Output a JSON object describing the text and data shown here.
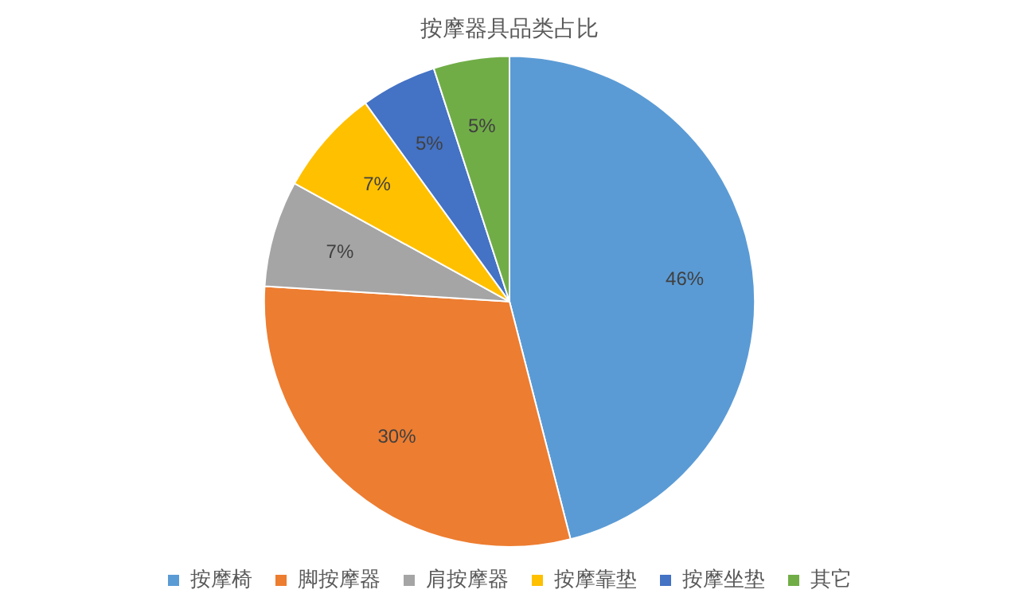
{
  "chart_data": {
    "type": "pie",
    "title": "按摩器具品类占比",
    "categories": [
      "按摩椅",
      "脚按摩器",
      "肩按摩器",
      "按摩靠垫",
      "按摩坐垫",
      "其它"
    ],
    "values": [
      46,
      30,
      7,
      7,
      5,
      5
    ],
    "colors": [
      "#5b9bd5",
      "#ed7d31",
      "#a5a5a5",
      "#ffc000",
      "#4472c4",
      "#70ad47"
    ],
    "value_labels": [
      "46%",
      "30%",
      "7%",
      "7%",
      "5%",
      "5%"
    ],
    "legend": "bottom"
  }
}
